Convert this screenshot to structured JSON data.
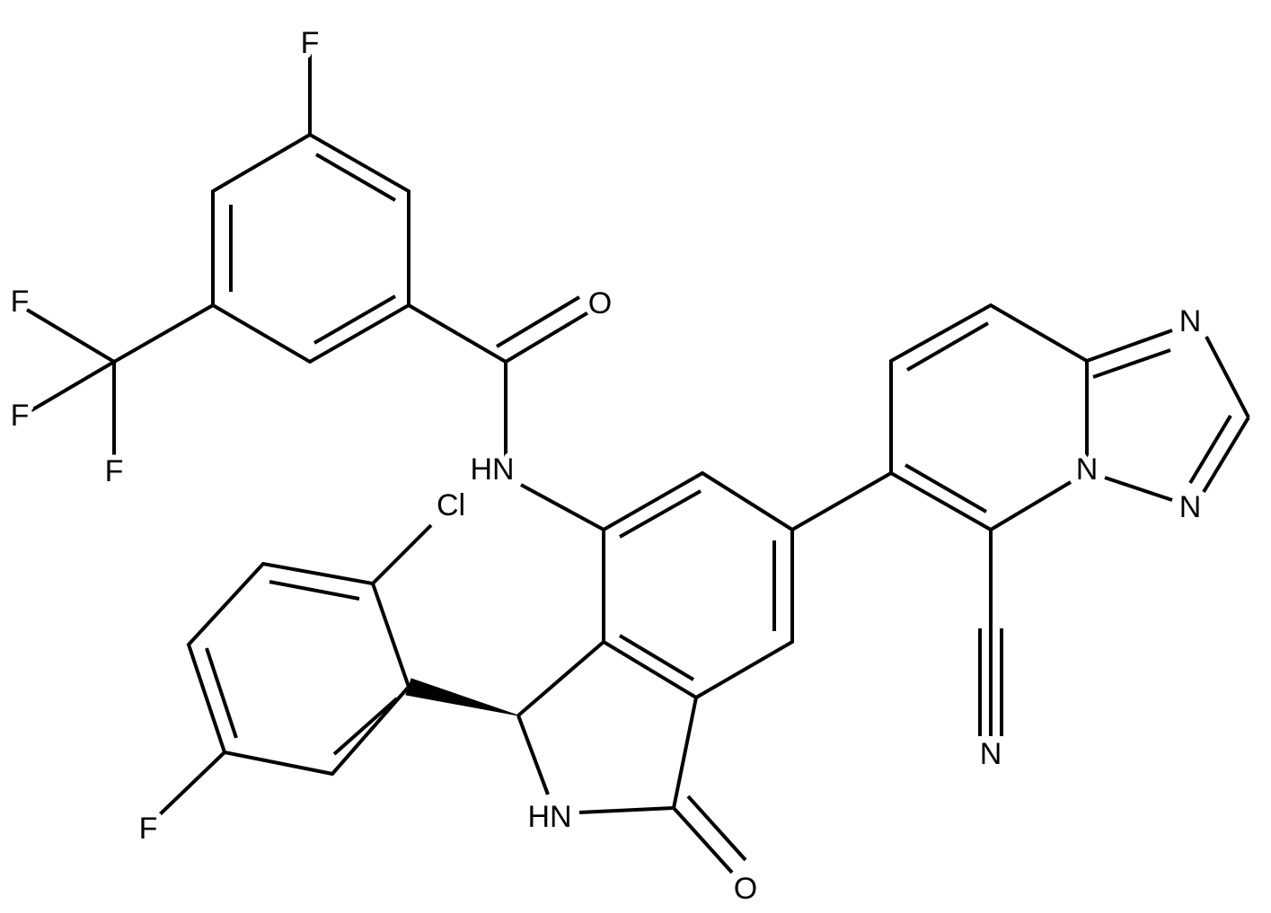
{
  "atoms": [
    {
      "label": "F"
    },
    {
      "label": "F"
    },
    {
      "label": "F"
    },
    {
      "label": "F"
    },
    {
      "label": "O"
    },
    {
      "label": "HN"
    },
    {
      "label": "Cl"
    },
    {
      "label": "N"
    },
    {
      "label": "N"
    },
    {
      "label": "N"
    },
    {
      "label": "N"
    },
    {
      "label": "F"
    },
    {
      "label": "HN"
    },
    {
      "label": "O"
    }
  ]
}
